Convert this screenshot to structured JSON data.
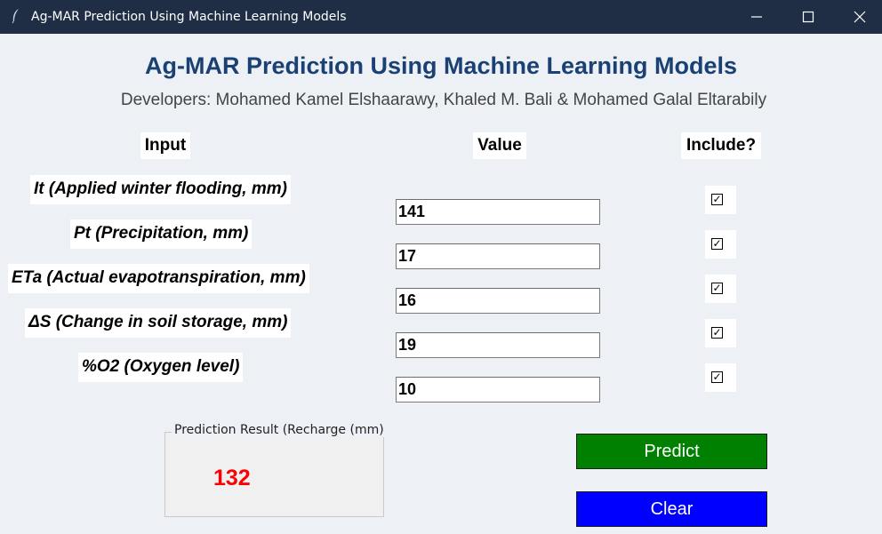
{
  "window": {
    "title": "Ag-MAR Prediction Using Machine Learning Models",
    "controls": [
      "minimize-icon",
      "maximize-icon",
      "close-icon"
    ],
    "titlebar_color": "#1f2d45"
  },
  "header": {
    "title": "Ag-MAR Prediction Using Machine Learning Models",
    "subtitle": "Developers: Mohamed Kamel Elshaarawy, Khaled M. Bali & Mohamed Galal Eltarabily"
  },
  "columns": {
    "input": "Input",
    "value": "Value",
    "include": "Include?"
  },
  "rows": [
    {
      "label": "It (Applied winter flooding, mm)",
      "value": "141",
      "include": true
    },
    {
      "label": "Pt (Precipitation, mm)",
      "value": "17",
      "include": true
    },
    {
      "label": "ETa (Actual evapotranspiration, mm)",
      "value": "16",
      "include": true
    },
    {
      "label": "ΔS (Change in soil storage, mm)",
      "value": "19",
      "include": true
    },
    {
      "label": "%O2 (Oxygen level)",
      "value": "10",
      "include": true
    }
  ],
  "check_glyph": "☑",
  "result": {
    "legend": "Prediction Result (Recharge (mm)",
    "value": "132",
    "value_color": "#ff0000"
  },
  "buttons": {
    "predict": {
      "label": "Predict",
      "color": "#008000"
    },
    "clear": {
      "label": "Clear",
      "color": "#0000ff"
    }
  }
}
